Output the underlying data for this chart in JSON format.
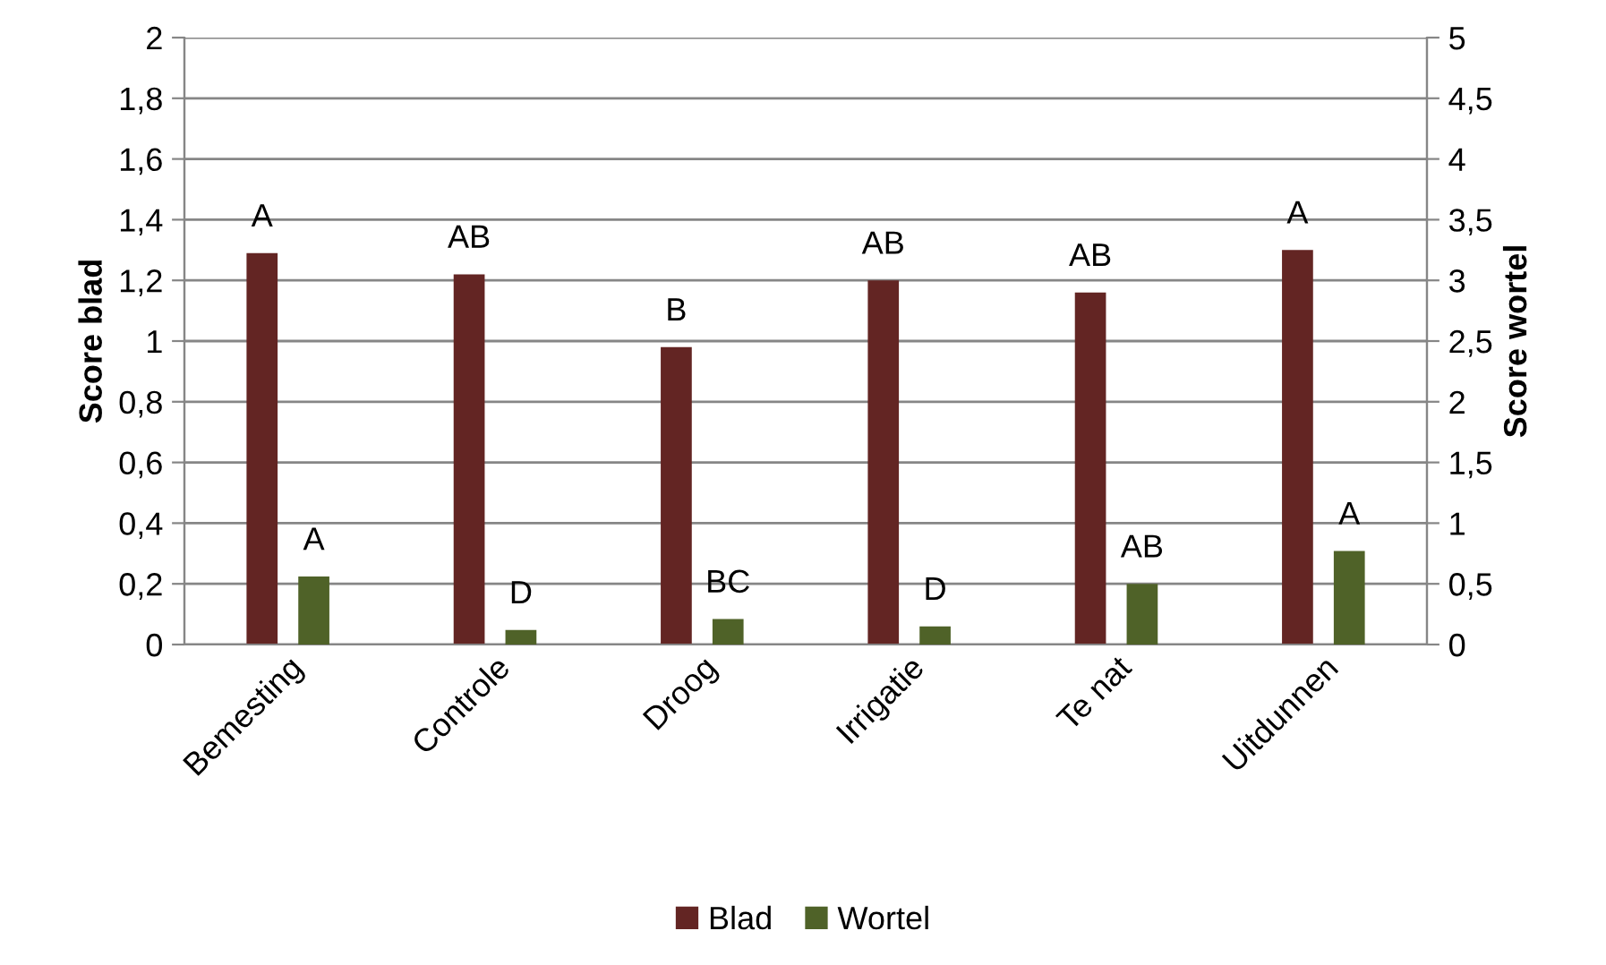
{
  "chart_data": {
    "type": "bar",
    "ylabel": "Score blad",
    "y2label": "Score wortel",
    "categories": [
      "Bemesting",
      "Controle",
      "Droog",
      "Irrigatie",
      "Te nat",
      "Uitdunnen"
    ],
    "series": [
      {
        "name": "Blad",
        "color": "#632523",
        "values": [
          1.29,
          1.22,
          0.98,
          1.2,
          1.16,
          1.3
        ]
      },
      {
        "name": "Wortel",
        "color": "#4f6228",
        "axis": "y2",
        "values": [
          0.56,
          0.12,
          0.21,
          0.15,
          0.5,
          0.77
        ]
      }
    ],
    "ylim": [
      0,
      2
    ],
    "yticks": [
      0,
      {
        "value": 0.2,
        "label": "0,2"
      },
      {
        "value": 0.4,
        "label": "0,4"
      },
      {
        "value": 0.6,
        "label": "0,6"
      },
      {
        "value": 0.8,
        "label": "0,8"
      },
      1,
      {
        "value": 1.2,
        "label": "1,2"
      },
      {
        "value": 1.4,
        "label": "1,4"
      },
      {
        "value": 1.6,
        "label": "1,6"
      },
      {
        "value": 1.8,
        "label": "1,8"
      },
      2
    ],
    "y2lim": [
      0,
      5
    ],
    "y2ticks": [
      0,
      {
        "value": 0.5,
        "label": "0,5"
      },
      1,
      {
        "value": 1.5,
        "label": "1,5"
      },
      2,
      {
        "value": 2.5,
        "label": "2,5"
      },
      3,
      {
        "value": 3.5,
        "label": "3,5"
      },
      4,
      {
        "value": 4.5,
        "label": "4,5"
      },
      5
    ],
    "annotations": [
      "A",
      "AB",
      "B",
      "AB",
      "AB",
      "A",
      "A",
      "D",
      "BC",
      "D",
      "AB",
      "A"
    ],
    "grid": "y",
    "legend": "bottom"
  }
}
